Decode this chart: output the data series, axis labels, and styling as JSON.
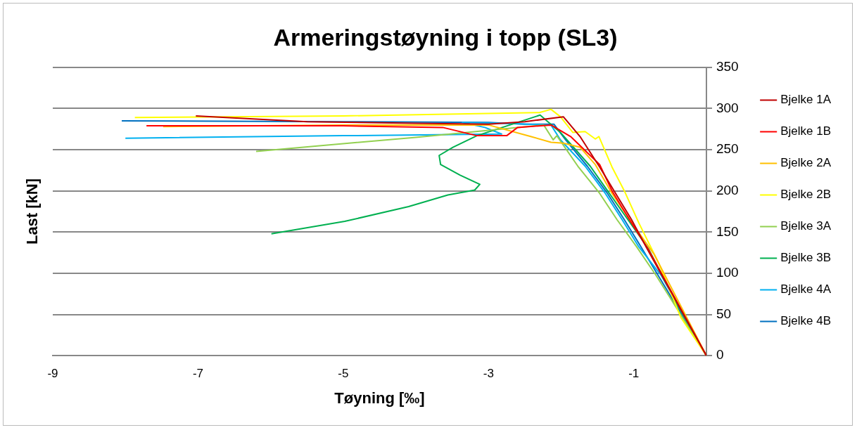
{
  "chart_data": {
    "type": "line",
    "title": "Armeringstøyning i topp (SL3)",
    "xlabel": "Tøyning [‰]",
    "ylabel": "Last [kN]",
    "xlim": [
      -9,
      0
    ],
    "xticks": [
      -9,
      -7,
      -5,
      -3,
      -1
    ],
    "ylim": [
      0,
      350
    ],
    "yticks": [
      0,
      50,
      100,
      150,
      200,
      250,
      300,
      350
    ],
    "grid": "y",
    "legend": "right",
    "marker": "none",
    "series": [
      {
        "name": "Bjelke 1A",
        "color": "#c00000",
        "x": [
          0,
          -0.83,
          -1.03,
          -1.23,
          -1.47,
          -1.74,
          -1.97,
          -2.5,
          -3,
          -4,
          -5.5,
          -7.03
        ],
        "values": [
          0,
          132,
          165,
          194,
          229,
          266,
          290,
          284,
          281,
          282,
          284,
          291
        ]
      },
      {
        "name": "Bjelke 1B",
        "color": "#ff0000",
        "x": [
          0,
          -0.8,
          -1.03,
          -1.3,
          -1.47,
          -1.87,
          -2.14,
          -2.6,
          -2.75,
          -3.16,
          -3.63,
          -5,
          -7.71
        ],
        "values": [
          0,
          129,
          161,
          200,
          232,
          266,
          280,
          277,
          267,
          267,
          277,
          279,
          279
        ]
      },
      {
        "name": "Bjelke 2A",
        "color": "#ffc000",
        "x": [
          0,
          -0.72,
          -1,
          -1.3,
          -1.53,
          -1.74,
          -1.97,
          -2.14,
          -2.42,
          -3,
          -5,
          -7.48
        ],
        "values": [
          0,
          123,
          158,
          197,
          232,
          253,
          258,
          259,
          266,
          280,
          280,
          278
        ]
      },
      {
        "name": "Bjelke 2B",
        "color": "#ffff00",
        "x": [
          0,
          -0.35,
          -0.66,
          -0.93,
          -1.13,
          -1.3,
          -1.48,
          -1.53,
          -1.67,
          -1.84,
          -2.01,
          -2.14,
          -2.3,
          -5,
          -7.87
        ],
        "values": [
          0,
          46,
          113,
          161,
          200,
          229,
          266,
          263,
          272,
          271,
          290,
          299,
          295,
          291,
          289
        ]
      },
      {
        "name": "Bjelke 3A",
        "color": "#92d050",
        "x": [
          0,
          -0.69,
          -0.96,
          -1.23,
          -1.47,
          -1.77,
          -2.06,
          -2.11,
          -2.24,
          -4,
          -6.2
        ],
        "values": [
          0,
          97,
          132,
          165,
          197,
          230,
          267,
          262,
          280,
          265,
          248
        ]
      },
      {
        "name": "Bjelke 3B",
        "color": "#00b050",
        "x": [
          0,
          -0.4,
          -0.8,
          -1.6,
          -2,
          -2.29,
          -3.16,
          -3.49,
          -3.68,
          -3.66,
          -3.39,
          -3.12,
          -3.19,
          -3.56,
          -4.1,
          -4.98,
          -5.99
        ],
        "values": [
          0,
          62,
          130,
          230,
          270,
          292,
          267,
          253,
          243,
          232,
          219,
          208,
          201,
          195,
          181,
          163,
          148
        ]
      },
      {
        "name": "Bjelke 4A",
        "color": "#00b0f0",
        "x": [
          0,
          -0.62,
          -0.93,
          -1.16,
          -1.4,
          -1.67,
          -2.01,
          -2.14,
          -2.8,
          -3.36,
          -3.05,
          -2.82,
          -5,
          -8
        ],
        "values": [
          0,
          97,
          132,
          165,
          198,
          230,
          262,
          280,
          282,
          283,
          277,
          269,
          267,
          264
        ]
      },
      {
        "name": "Bjelke 4B",
        "color": "#0070c0",
        "x": [
          0,
          -0.9,
          -1.13,
          -1.37,
          -1.64,
          -1.94,
          -2.1,
          -2.5,
          -3,
          -5,
          -8.05
        ],
        "values": [
          0,
          132,
          165,
          198,
          230,
          262,
          281,
          281,
          283,
          284,
          285
        ]
      }
    ]
  }
}
